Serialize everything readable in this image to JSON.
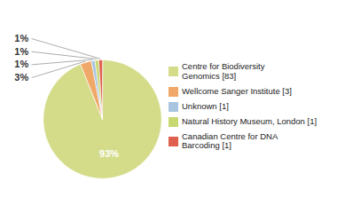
{
  "chart_data": {
    "type": "pie",
    "categories": [
      "Centre for Biodiversity\nGenomics [83]",
      "Wellcome Sanger Institute [3]",
      "Unknown [1]",
      "Natural History Museum, London [1]",
      "Canadian Centre for DNA\nBarcoding [1]"
    ],
    "values": [
      93,
      3,
      1,
      1,
      1
    ],
    "value_labels": [
      "93%",
      "3%",
      "1%",
      "1%",
      "1%"
    ],
    "colors": [
      "#d4dc8a",
      "#f0a868",
      "#a8c4e0",
      "#c8d870",
      "#e06050"
    ],
    "data_labels": true,
    "legend": "right"
  }
}
